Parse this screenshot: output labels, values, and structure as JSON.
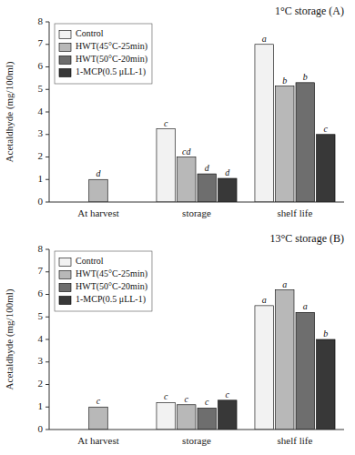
{
  "chart_data": [
    {
      "type": "bar",
      "title": "1°C storage (A)",
      "y_label": "Acetaldhyde (mg/100ml)",
      "categories": [
        "At harvest",
        "storage",
        "shelf life"
      ],
      "series": [
        {
          "name": "Control",
          "color": "#f2f2f2",
          "values": [
            null,
            3.25,
            7.0
          ],
          "annotations": [
            null,
            "c",
            "a"
          ]
        },
        {
          "name": "HWT(45°C-25min)",
          "color": "#b8b8b8",
          "values": [
            1.0,
            2.0,
            5.15
          ],
          "annotations": [
            "d",
            "cd",
            "b"
          ]
        },
        {
          "name": "HWT(50°C-20min)",
          "color": "#6e6e6e",
          "values": [
            null,
            1.25,
            5.3
          ],
          "annotations": [
            null,
            "d",
            "b"
          ]
        },
        {
          "name": "1-MCP(0.5 μLL-1)",
          "color": "#383838",
          "values": [
            null,
            1.05,
            3.0
          ],
          "annotations": [
            null,
            "d",
            "c"
          ]
        }
      ],
      "ylim": [
        0,
        8
      ],
      "yticks": [
        0,
        1,
        2,
        3,
        4,
        5,
        6,
        7,
        8
      ],
      "grid": false,
      "legend": "upper left"
    },
    {
      "type": "bar",
      "title": "13°C storage (B)",
      "y_label": "Acetaldhyde (mg/100ml)",
      "categories": [
        "At harvest",
        "storage",
        "shelf life"
      ],
      "series": [
        {
          "name": "Control",
          "color": "#f2f2f2",
          "values": [
            null,
            1.2,
            5.5
          ],
          "annotations": [
            null,
            "c",
            "a"
          ]
        },
        {
          "name": "HWT(45°C-25min)",
          "color": "#b8b8b8",
          "values": [
            1.0,
            1.1,
            6.2
          ],
          "annotations": [
            "c",
            "c",
            "a"
          ]
        },
        {
          "name": "HWT(50°C-20min)",
          "color": "#6e6e6e",
          "values": [
            null,
            0.95,
            5.2
          ],
          "annotations": [
            null,
            "c",
            "a"
          ]
        },
        {
          "name": "1-MCP(0.5 μLL-1)",
          "color": "#383838",
          "values": [
            null,
            1.3,
            4.0
          ],
          "annotations": [
            null,
            "c",
            "b"
          ]
        }
      ],
      "ylim": [
        0,
        8
      ],
      "yticks": [
        0,
        1,
        2,
        3,
        4,
        5,
        6,
        7,
        8
      ],
      "grid": false,
      "legend": "upper left"
    }
  ]
}
